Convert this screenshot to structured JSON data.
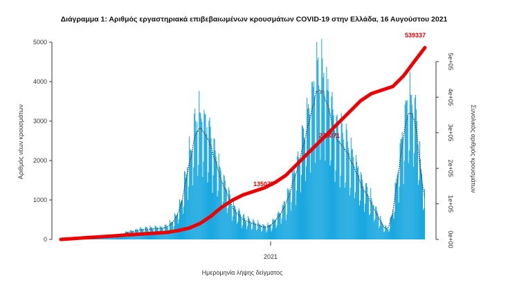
{
  "chart_data": {
    "type": "bar",
    "title": "Διάγραμμα 1: Αριθμός εργαστηριακά επιβεβαιωμένων κρουσμάτων COVID-19 στην Ελλάδα, 16 Αυγούστου 2021",
    "xlabel": "Ημερομηνία λήψης δείγματος",
    "ylabel": "Αριθμός νέων κρουσμάτων",
    "y2label": "Συνολικός αριθμός κρουσμάτων",
    "x_tick_labels": [
      "2021"
    ],
    "y_ticks": [
      "0",
      "1000",
      "2000",
      "3000",
      "4000",
      "5000"
    ],
    "y2_ticks": [
      "0e+00",
      "1e+05",
      "2e+05",
      "3e+05",
      "4e+05",
      "5e+05"
    ],
    "ylim": [
      0,
      5000
    ],
    "y2lim": [
      0,
      500000
    ],
    "annotations": [
      "135077",
      "270071",
      "539337"
    ],
    "colors": {
      "bars": "#1aa8e0",
      "cumulative_line": "#ee0000",
      "moving_average": "#444444"
    },
    "daily_cases_weekly_envelope": [
      5,
      10,
      10,
      15,
      20,
      25,
      30,
      35,
      40,
      50,
      60,
      80,
      100,
      150,
      200,
      230,
      260,
      290,
      320,
      330,
      340,
      350,
      360,
      400,
      500,
      700,
      1100,
      1800,
      2600,
      3300,
      3600,
      3500,
      3200,
      2800,
      2300,
      1800,
      1500,
      1100,
      900,
      700,
      600,
      550,
      500,
      450,
      400,
      420,
      500,
      700,
      900,
      1200,
      1600,
      2100,
      2700,
      3300,
      3900,
      4500,
      4900,
      4700,
      4200,
      3600,
      3200,
      3000,
      2800,
      2500,
      2200,
      1900,
      1600,
      1300,
      1000,
      700,
      400,
      300,
      800,
      1800,
      3000,
      3800,
      4200,
      3700,
      2400,
      1200
    ],
    "cumulative_cases": [
      0,
      2000,
      4000,
      6000,
      8000,
      10000,
      12000,
      14000,
      16000,
      18000,
      20000,
      25000,
      32000,
      45000,
      65000,
      90000,
      110000,
      125000,
      135077,
      145000,
      160000,
      180000,
      210000,
      240000,
      270071,
      300000,
      330000,
      360000,
      390000,
      410000,
      420000,
      430000,
      460000,
      500000,
      539337
    ]
  }
}
